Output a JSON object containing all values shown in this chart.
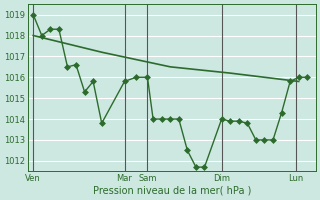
{
  "xlabel": "Pression niveau de la mer( hPa )",
  "bg_color": "#cce8e0",
  "grid_color": "#ffffff",
  "line_color": "#2d6b2d",
  "marker_color": "#2d6b2d",
  "ylim": [
    1011.5,
    1019.5
  ],
  "yticks": [
    1012,
    1013,
    1014,
    1015,
    1016,
    1017,
    1018,
    1019
  ],
  "x_day_labels": [
    {
      "label": "Ven",
      "x": 0.0
    },
    {
      "label": "Mar",
      "x": 5.33
    },
    {
      "label": "Sam",
      "x": 6.67
    },
    {
      "label": "Dim",
      "x": 11.0
    },
    {
      "label": "Lun",
      "x": 15.33
    }
  ],
  "x_day_lines": [
    0.0,
    5.33,
    6.67,
    11.0,
    15.33
  ],
  "xlim": [
    -0.3,
    16.5
  ],
  "lines": [
    {
      "x": [
        0.0,
        0.5,
        1.0,
        1.5,
        2.0,
        2.5,
        3.0,
        3.5,
        4.0,
        5.33,
        6.0,
        6.67,
        7.0,
        7.5,
        8.0,
        8.5,
        9.0,
        9.5,
        10.0,
        11.0,
        11.5,
        12.0,
        12.5,
        13.0,
        13.5,
        14.0,
        14.5,
        15.0,
        15.5,
        16.0
      ],
      "y": [
        1019.0,
        1018.0,
        1018.3,
        1018.3,
        1016.5,
        1016.6,
        1015.3,
        1015.8,
        1013.8,
        1015.8,
        1016.0,
        1016.0,
        1014.0,
        1014.0,
        1014.0,
        1014.0,
        1012.5,
        1011.7,
        1011.7,
        1014.0,
        1013.9,
        1013.9,
        1013.8,
        1013.0,
        1013.0,
        1013.0,
        1014.3,
        1015.8,
        1016.0,
        1016.0
      ],
      "marker": "D",
      "markersize": 3.0
    },
    {
      "x": [
        0.0,
        4.0,
        8.0,
        11.5,
        15.5
      ],
      "y": [
        1018.0,
        1017.2,
        1016.5,
        1016.2,
        1015.8
      ],
      "marker": null,
      "markersize": 0,
      "linewidth": 1.2
    }
  ]
}
